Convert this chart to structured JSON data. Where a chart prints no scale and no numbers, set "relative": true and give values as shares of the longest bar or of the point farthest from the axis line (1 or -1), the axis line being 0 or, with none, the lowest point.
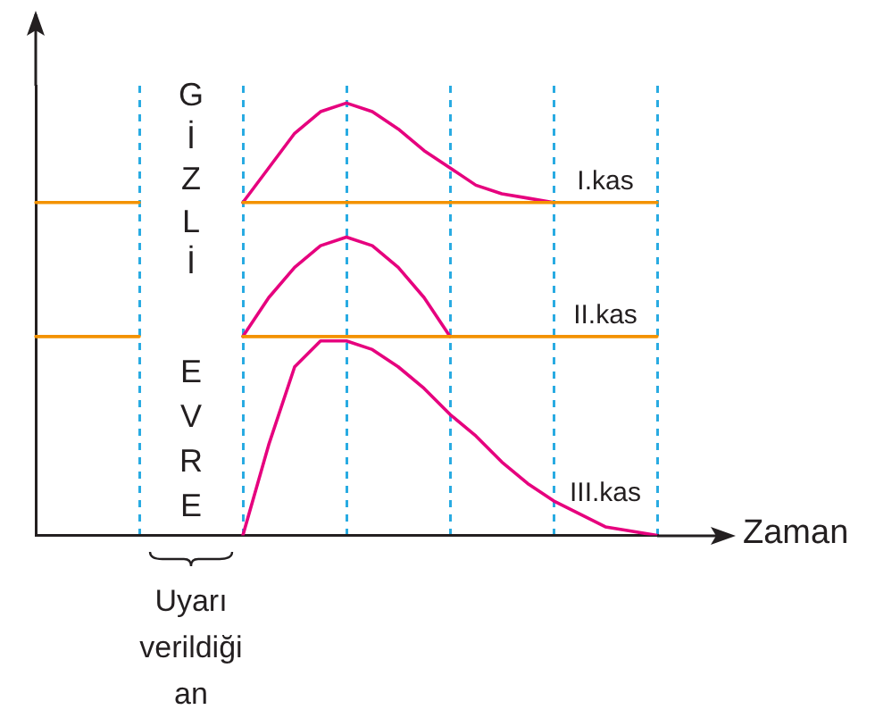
{
  "chart_data": {
    "type": "line",
    "relative": true,
    "xlabel": "Zaman",
    "annotations": [
      "GİZLİ",
      "EVRE",
      "Uyarı verildiği an"
    ],
    "categories": [
      null,
      null,
      null,
      null,
      null,
      null,
      null,
      null,
      null,
      null,
      null,
      null,
      null,
      null,
      null,
      null,
      null,
      null,
      null,
      null,
      null,
      null,
      null,
      null,
      null
    ],
    "grid": "x",
    "legend": false,
    "marker": "none",
    "line_style": "solid",
    "series": [
      {
        "color": "#f39200",
        "values": [
          0.77,
          0.77,
          0.77,
          0.77,
          0.77,
          null,
          null,
          null,
          null,
          null,
          null,
          null,
          null,
          null,
          null,
          null,
          null,
          null,
          null,
          null,
          null,
          null,
          null,
          null,
          null
        ]
      },
      {
        "name": "I.kas",
        "color": "#f39200",
        "values": [
          null,
          null,
          null,
          null,
          null,
          null,
          null,
          null,
          0.77,
          0.77,
          0.77,
          0.77,
          0.77,
          0.77,
          0.77,
          0.77,
          0.77,
          0.77,
          0.77,
          0.77,
          0.77,
          0.77,
          0.77,
          0.77,
          0.77
        ]
      },
      {
        "color": "#e6007e",
        "values": [
          null,
          null,
          null,
          null,
          null,
          null,
          null,
          null,
          0.77,
          0.85,
          0.93,
          0.98,
          1.0,
          0.98,
          0.94,
          0.89,
          0.85,
          0.81,
          0.79,
          0.78,
          0.77,
          null,
          null,
          null,
          null
        ]
      },
      {
        "color": "#f39200",
        "values": [
          0.46,
          0.46,
          0.46,
          0.46,
          0.46,
          null,
          null,
          null,
          null,
          null,
          null,
          null,
          null,
          null,
          null,
          null,
          null,
          null,
          null,
          null,
          null,
          null,
          null,
          null,
          null
        ]
      },
      {
        "name": "II.kas",
        "color": "#f39200",
        "values": [
          null,
          null,
          null,
          null,
          null,
          null,
          null,
          null,
          0.46,
          0.46,
          0.46,
          0.46,
          0.46,
          0.46,
          0.46,
          0.46,
          0.46,
          0.46,
          0.46,
          0.46,
          0.46,
          0.46,
          0.46,
          0.46,
          0.46
        ]
      },
      {
        "color": "#e6007e",
        "values": [
          null,
          null,
          null,
          null,
          null,
          null,
          null,
          null,
          0.46,
          0.55,
          0.62,
          0.67,
          0.69,
          0.67,
          0.62,
          0.55,
          0.46,
          null,
          null,
          null,
          null,
          null,
          null,
          null,
          null
        ]
      },
      {
        "name": "III.kas",
        "color": "#e6007e",
        "values": [
          null,
          null,
          null,
          null,
          null,
          null,
          null,
          null,
          0,
          0.21,
          0.39,
          0.45,
          0.45,
          0.43,
          0.39,
          0.34,
          0.28,
          0.23,
          0.17,
          0.12,
          0.08,
          0.05,
          0.02,
          0.01,
          0
        ]
      }
    ]
  }
}
